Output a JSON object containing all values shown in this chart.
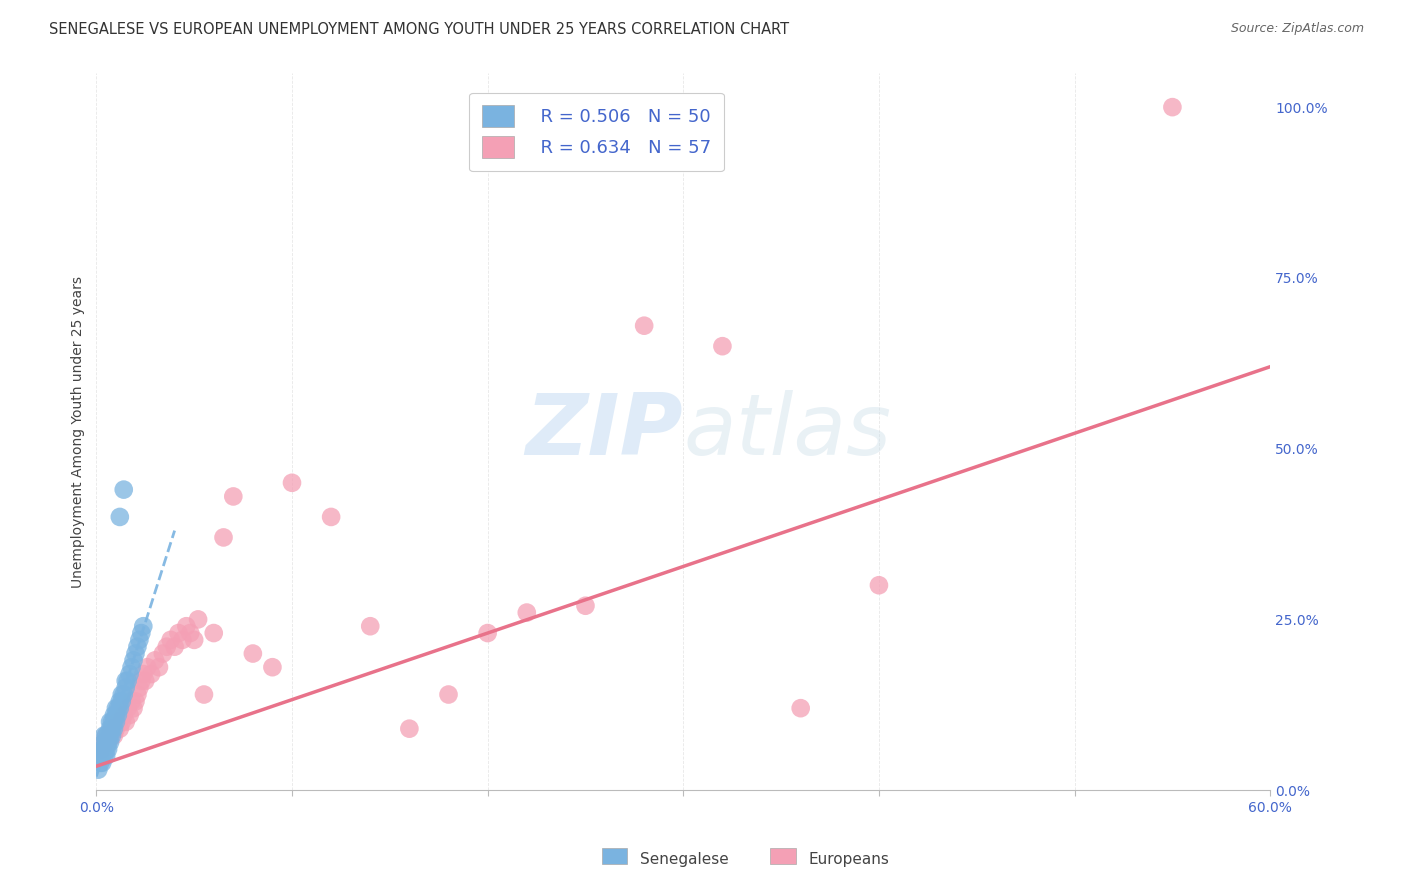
{
  "title": "SENEGALESE VS EUROPEAN UNEMPLOYMENT AMONG YOUTH UNDER 25 YEARS CORRELATION CHART",
  "source": "Source: ZipAtlas.com",
  "ylabel": "Unemployment Among Youth under 25 years",
  "xlim": [
    0,
    0.6
  ],
  "ylim": [
    0,
    1.05
  ],
  "yticks_right": [
    0.0,
    0.25,
    0.5,
    0.75,
    1.0
  ],
  "ytick_right_labels": [
    "0.0%",
    "25.0%",
    "50.0%",
    "75.0%",
    "100.0%"
  ],
  "watermark": "ZIPatlas",
  "senegalese_color": "#7ab3e0",
  "europeans_color": "#f4a0b5",
  "senegalese_line_color": "#7ab3e0",
  "europeans_line_color": "#e8728a",
  "background_color": "#ffffff",
  "grid_color": "#e8e8e8",
  "senegalese_x": [
    0.001,
    0.002,
    0.002,
    0.003,
    0.003,
    0.003,
    0.004,
    0.004,
    0.004,
    0.004,
    0.005,
    0.005,
    0.005,
    0.005,
    0.006,
    0.006,
    0.006,
    0.007,
    0.007,
    0.007,
    0.007,
    0.008,
    0.008,
    0.008,
    0.009,
    0.009,
    0.009,
    0.01,
    0.01,
    0.01,
    0.011,
    0.011,
    0.012,
    0.012,
    0.013,
    0.013,
    0.014,
    0.015,
    0.015,
    0.016,
    0.017,
    0.018,
    0.019,
    0.02,
    0.021,
    0.022,
    0.023,
    0.024,
    0.014,
    0.012
  ],
  "senegalese_y": [
    0.03,
    0.04,
    0.05,
    0.04,
    0.05,
    0.06,
    0.05,
    0.06,
    0.07,
    0.08,
    0.05,
    0.06,
    0.07,
    0.08,
    0.06,
    0.07,
    0.08,
    0.07,
    0.08,
    0.09,
    0.1,
    0.08,
    0.09,
    0.1,
    0.09,
    0.1,
    0.11,
    0.1,
    0.11,
    0.12,
    0.11,
    0.12,
    0.12,
    0.13,
    0.13,
    0.14,
    0.14,
    0.15,
    0.16,
    0.16,
    0.17,
    0.18,
    0.19,
    0.2,
    0.21,
    0.22,
    0.23,
    0.24,
    0.44,
    0.4
  ],
  "europeans_x": [
    0.002,
    0.003,
    0.004,
    0.005,
    0.006,
    0.007,
    0.008,
    0.009,
    0.01,
    0.011,
    0.012,
    0.013,
    0.014,
    0.015,
    0.016,
    0.017,
    0.018,
    0.019,
    0.02,
    0.021,
    0.022,
    0.023,
    0.024,
    0.025,
    0.026,
    0.028,
    0.03,
    0.032,
    0.034,
    0.036,
    0.038,
    0.04,
    0.042,
    0.044,
    0.046,
    0.048,
    0.05,
    0.052,
    0.055,
    0.06,
    0.065,
    0.07,
    0.08,
    0.09,
    0.1,
    0.12,
    0.14,
    0.16,
    0.18,
    0.2,
    0.22,
    0.25,
    0.28,
    0.32,
    0.36,
    0.4,
    0.55
  ],
  "europeans_y": [
    0.05,
    0.06,
    0.07,
    0.08,
    0.07,
    0.08,
    0.09,
    0.08,
    0.09,
    0.1,
    0.09,
    0.1,
    0.11,
    0.1,
    0.12,
    0.11,
    0.13,
    0.12,
    0.13,
    0.14,
    0.15,
    0.16,
    0.17,
    0.16,
    0.18,
    0.17,
    0.19,
    0.18,
    0.2,
    0.21,
    0.22,
    0.21,
    0.23,
    0.22,
    0.24,
    0.23,
    0.22,
    0.25,
    0.14,
    0.23,
    0.37,
    0.43,
    0.2,
    0.18,
    0.45,
    0.4,
    0.24,
    0.09,
    0.14,
    0.23,
    0.26,
    0.27,
    0.68,
    0.65,
    0.12,
    0.3,
    1.0
  ],
  "sen_line_x0": 0.0,
  "sen_line_x1": 0.04,
  "sen_line_y0": 0.02,
  "sen_line_y1": 0.38,
  "eur_line_x0": 0.0,
  "eur_line_x1": 0.6,
  "eur_line_y0": 0.035,
  "eur_line_y1": 0.62
}
